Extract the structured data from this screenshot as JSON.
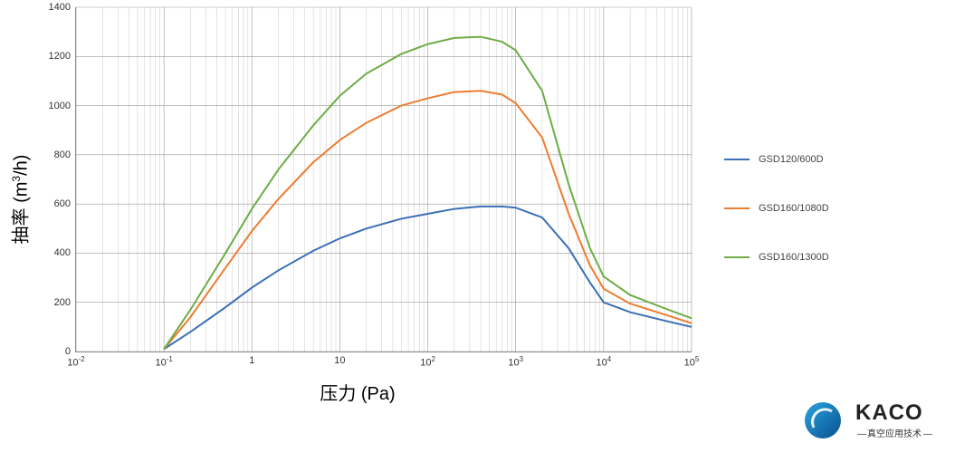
{
  "chart": {
    "type": "line",
    "ylabel_html": "抽率 (m<sup>3</sup>/h)",
    "xlabel": "压力 (Pa)",
    "xscale": "log",
    "yscale": "linear",
    "xlim_exp": [
      -2,
      5
    ],
    "ylim": [
      0,
      1400
    ],
    "ytick_step": 200,
    "background_color": "#ffffff",
    "grid_major_color": "#999999",
    "grid_minor_color": "#bbbbbb",
    "axis_color": "#888888",
    "label_fontsize": 20,
    "tick_fontsize": 11,
    "line_width": 2,
    "x_major_ticks_exp": [
      -2,
      -1,
      0,
      1,
      2,
      3,
      4,
      5
    ],
    "series": [
      {
        "name": "GSD120/600D",
        "color": "#3b6fb6",
        "points": [
          [
            0.1,
            10
          ],
          [
            0.2,
            80
          ],
          [
            0.5,
            180
          ],
          [
            1,
            260
          ],
          [
            2,
            330
          ],
          [
            5,
            410
          ],
          [
            10,
            460
          ],
          [
            20,
            500
          ],
          [
            50,
            540
          ],
          [
            100,
            560
          ],
          [
            200,
            580
          ],
          [
            400,
            590
          ],
          [
            700,
            590
          ],
          [
            1000,
            585
          ],
          [
            2000,
            545
          ],
          [
            4000,
            420
          ],
          [
            7000,
            280
          ],
          [
            10000,
            200
          ],
          [
            20000,
            160
          ],
          [
            50000,
            125
          ],
          [
            100000,
            100
          ]
        ]
      },
      {
        "name": "GSD160/1080D",
        "color": "#ed7d31",
        "points": [
          [
            0.1,
            10
          ],
          [
            0.2,
            140
          ],
          [
            0.5,
            340
          ],
          [
            1,
            490
          ],
          [
            2,
            620
          ],
          [
            5,
            770
          ],
          [
            10,
            860
          ],
          [
            20,
            930
          ],
          [
            50,
            1000
          ],
          [
            100,
            1030
          ],
          [
            200,
            1055
          ],
          [
            400,
            1060
          ],
          [
            700,
            1045
          ],
          [
            1000,
            1010
          ],
          [
            2000,
            870
          ],
          [
            4000,
            560
          ],
          [
            7000,
            350
          ],
          [
            10000,
            255
          ],
          [
            20000,
            195
          ],
          [
            50000,
            150
          ],
          [
            100000,
            115
          ]
        ]
      },
      {
        "name": "GSD160/1300D",
        "color": "#6fac46",
        "points": [
          [
            0.1,
            10
          ],
          [
            0.2,
            170
          ],
          [
            0.5,
            400
          ],
          [
            1,
            580
          ],
          [
            2,
            740
          ],
          [
            5,
            920
          ],
          [
            10,
            1040
          ],
          [
            20,
            1130
          ],
          [
            50,
            1210
          ],
          [
            100,
            1250
          ],
          [
            200,
            1275
          ],
          [
            400,
            1280
          ],
          [
            700,
            1260
          ],
          [
            1000,
            1225
          ],
          [
            2000,
            1060
          ],
          [
            4000,
            680
          ],
          [
            7000,
            420
          ],
          [
            10000,
            305
          ],
          [
            20000,
            230
          ],
          [
            50000,
            175
          ],
          [
            100000,
            135
          ]
        ]
      }
    ]
  },
  "legend": {
    "items": [
      {
        "label": "GSD120/600D",
        "color": "#3b6fb6"
      },
      {
        "label": "GSD160/1080D",
        "color": "#ed7d31"
      },
      {
        "label": "GSD160/1300D",
        "color": "#6fac46"
      }
    ]
  },
  "brand": {
    "name": "KACO",
    "sub": "真空应用技术",
    "logo_gradient_from": "#2aa4e0",
    "logo_gradient_to": "#0a4f8f"
  }
}
